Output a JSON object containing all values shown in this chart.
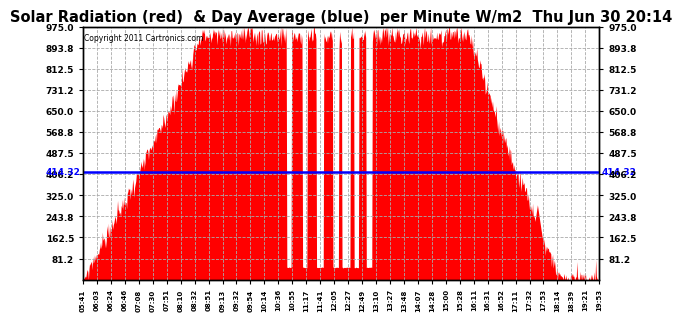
{
  "title": "Solar Radiation (red)  & Day Average (blue)  per Minute W/m2  Thu Jun 30 20:14",
  "copyright": "Copyright 2011 Cartronics.com",
  "y_max": 975.0,
  "y_min": 0.0,
  "y_ticks": [
    81.2,
    162.5,
    243.8,
    325.0,
    406.2,
    487.5,
    568.8,
    650.0,
    731.2,
    812.5,
    893.8,
    975.0
  ],
  "avg_value": 414.32,
  "avg_label": "414.32",
  "bar_color": "#FF0000",
  "avg_line_color": "#0000FF",
  "background_color": "#FFFFFF",
  "grid_color": "#AAAAAA",
  "title_fontsize": 10.5,
  "x_tick_labels": [
    "05:41",
    "06:03",
    "06:24",
    "06:46",
    "07:08",
    "07:30",
    "07:51",
    "08:10",
    "08:32",
    "08:51",
    "09:13",
    "09:32",
    "09:54",
    "10:14",
    "10:36",
    "10:55",
    "11:17",
    "11:41",
    "12:05",
    "12:27",
    "12:49",
    "13:10",
    "13:27",
    "13:48",
    "14:07",
    "14:28",
    "15:00",
    "15:28",
    "16:11",
    "16:31",
    "16:52",
    "17:11",
    "17:32",
    "17:53",
    "18:14",
    "18:39",
    "19:21",
    "19:53"
  ]
}
